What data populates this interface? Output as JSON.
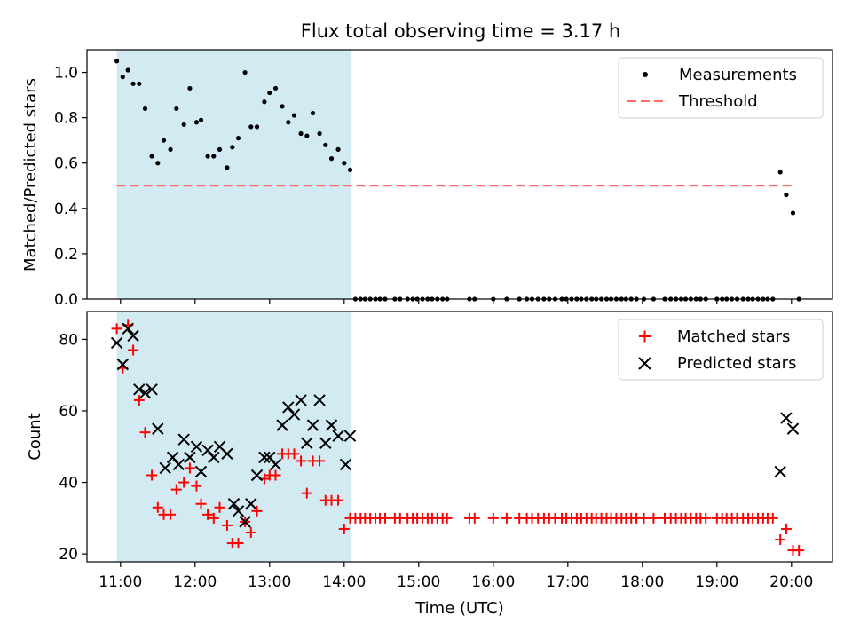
{
  "chart_data": [
    {
      "type": "scatter",
      "title": "Flux total observing time = 3.17 h",
      "xlabel": "",
      "ylabel": "Matched/Predicted stars",
      "x_unit": "hours UTC",
      "xlim": [
        10.55,
        20.55
      ],
      "ylim": [
        0,
        1.1
      ],
      "yticks": [
        0.0,
        0.2,
        0.4,
        0.6,
        0.8,
        1.0
      ],
      "ytick_labels": [
        "0.0",
        "0.2",
        "0.4",
        "0.6",
        "0.8",
        "1.0"
      ],
      "shaded_region": {
        "x_start": 10.95,
        "x_end": 14.1,
        "color": "#add8e6"
      },
      "threshold": {
        "y": 0.5,
        "x_start": 10.95,
        "x_end": 20.05,
        "color": "#ff6b6b",
        "style": "dashed"
      },
      "legend_position": "top-right",
      "series": [
        {
          "name": "Measurements",
          "marker": "dot",
          "color": "#000000",
          "x": [
            10.95,
            11.03,
            11.1,
            11.17,
            11.25,
            11.33,
            11.42,
            11.5,
            11.58,
            11.67,
            11.75,
            11.85,
            11.93,
            12.02,
            12.08,
            12.17,
            12.25,
            12.33,
            12.43,
            12.5,
            12.58,
            12.67,
            12.75,
            12.83,
            12.93,
            13.0,
            13.08,
            13.17,
            13.25,
            13.33,
            13.42,
            13.5,
            13.58,
            13.67,
            13.75,
            13.83,
            13.92,
            14.0,
            14.08,
            14.15,
            14.22,
            14.28,
            14.35,
            14.42,
            14.48,
            14.55,
            14.68,
            14.75,
            14.85,
            14.92,
            14.98,
            15.05,
            15.12,
            15.18,
            15.25,
            15.32,
            15.38,
            15.68,
            15.75,
            16.0,
            16.18,
            16.35,
            16.45,
            16.52,
            16.6,
            16.68,
            16.75,
            16.83,
            16.92,
            16.98,
            17.05,
            17.12,
            17.18,
            17.25,
            17.32,
            17.38,
            17.45,
            17.52,
            17.58,
            17.65,
            17.72,
            17.78,
            17.85,
            17.92,
            18.02,
            18.15,
            18.3,
            18.38,
            18.45,
            18.52,
            18.58,
            18.65,
            18.72,
            18.78,
            18.85,
            19.0,
            19.07,
            19.13,
            19.2,
            19.27,
            19.35,
            19.42,
            19.48,
            19.55,
            19.62,
            19.68,
            19.75,
            19.85,
            19.93,
            20.02,
            20.1
          ],
          "y": [
            1.05,
            0.98,
            1.01,
            0.95,
            0.95,
            0.84,
            0.63,
            0.6,
            0.7,
            0.66,
            0.84,
            0.77,
            0.93,
            0.78,
            0.79,
            0.63,
            0.63,
            0.66,
            0.58,
            0.67,
            0.71,
            1.0,
            0.76,
            0.76,
            0.87,
            0.91,
            0.93,
            0.85,
            0.78,
            0.81,
            0.73,
            0.72,
            0.82,
            0.73,
            0.68,
            0.62,
            0.66,
            0.6,
            0.57,
            0.0,
            0.0,
            0.0,
            0.0,
            0.0,
            0.0,
            0.0,
            0.0,
            0.0,
            0.0,
            0.0,
            0.0,
            0.0,
            0.0,
            0.0,
            0.0,
            0.0,
            0.0,
            0.0,
            0.0,
            0.0,
            0.0,
            0.0,
            0.0,
            0.0,
            0.0,
            0.0,
            0.0,
            0.0,
            0.0,
            0.0,
            0.0,
            0.0,
            0.0,
            0.0,
            0.0,
            0.0,
            0.0,
            0.0,
            0.0,
            0.0,
            0.0,
            0.0,
            0.0,
            0.0,
            0.0,
            0.0,
            0.0,
            0.0,
            0.0,
            0.0,
            0.0,
            0.0,
            0.0,
            0.0,
            0.0,
            0.0,
            0.0,
            0.0,
            0.0,
            0.0,
            0.0,
            0.0,
            0.0,
            0.0,
            0.0,
            0.0,
            0.0,
            0.56,
            0.46,
            0.38,
            0.0
          ]
        },
        {
          "name": "Threshold",
          "marker": "dashed-line",
          "color": "#ff6b6b"
        }
      ]
    },
    {
      "type": "scatter",
      "title": "",
      "xlabel": "Time (UTC)",
      "ylabel": "Count",
      "x_unit": "hours UTC",
      "xlim": [
        10.55,
        20.55
      ],
      "ylim": [
        17.8,
        87.8
      ],
      "xticks": [
        11,
        12,
        13,
        14,
        15,
        16,
        17,
        18,
        19,
        20
      ],
      "xtick_labels": [
        "11:00",
        "12:00",
        "13:00",
        "14:00",
        "15:00",
        "16:00",
        "17:00",
        "18:00",
        "19:00",
        "20:00"
      ],
      "yticks": [
        20,
        40,
        60,
        80
      ],
      "ytick_labels": [
        "20",
        "40",
        "60",
        "80"
      ],
      "shaded_region": {
        "x_start": 10.95,
        "x_end": 14.1,
        "color": "#add8e6"
      },
      "legend_position": "top-right",
      "series": [
        {
          "name": "Matched stars",
          "marker": "plus",
          "color": "#ff0000",
          "x": [
            10.95,
            11.03,
            11.1,
            11.17,
            11.25,
            11.33,
            11.42,
            11.5,
            11.58,
            11.67,
            11.75,
            11.85,
            11.93,
            12.02,
            12.08,
            12.17,
            12.25,
            12.33,
            12.43,
            12.5,
            12.58,
            12.67,
            12.75,
            12.83,
            12.93,
            13.0,
            13.08,
            13.17,
            13.25,
            13.33,
            13.42,
            13.5,
            13.58,
            13.67,
            13.75,
            13.83,
            13.92,
            14.0,
            14.08,
            14.15,
            14.22,
            14.28,
            14.35,
            14.42,
            14.48,
            14.55,
            14.68,
            14.75,
            14.85,
            14.92,
            14.98,
            15.05,
            15.12,
            15.18,
            15.25,
            15.32,
            15.38,
            15.68,
            15.75,
            16.0,
            16.18,
            16.35,
            16.45,
            16.52,
            16.6,
            16.68,
            16.75,
            16.83,
            16.92,
            16.98,
            17.05,
            17.12,
            17.18,
            17.25,
            17.32,
            17.38,
            17.45,
            17.52,
            17.58,
            17.65,
            17.72,
            17.78,
            17.85,
            17.92,
            18.02,
            18.15,
            18.3,
            18.38,
            18.45,
            18.52,
            18.58,
            18.65,
            18.72,
            18.78,
            18.85,
            19.0,
            19.07,
            19.13,
            19.2,
            19.27,
            19.35,
            19.42,
            19.48,
            19.55,
            19.62,
            19.68,
            19.75,
            19.85,
            19.93,
            20.02,
            20.1
          ],
          "y": [
            83,
            72,
            84,
            77,
            63,
            54,
            42,
            33,
            31,
            31,
            38,
            40,
            44,
            39,
            34,
            31,
            30,
            33,
            28,
            23,
            23,
            29,
            26,
            32,
            41,
            42,
            42,
            48,
            48,
            48,
            46,
            37,
            46,
            46,
            35,
            35,
            35,
            27,
            30,
            30,
            30,
            30,
            30,
            30,
            30,
            30,
            30,
            30,
            30,
            30,
            30,
            30,
            30,
            30,
            30,
            30,
            30,
            30,
            30,
            30,
            30,
            30,
            30,
            30,
            30,
            30,
            30,
            30,
            30,
            30,
            30,
            30,
            30,
            30,
            30,
            30,
            30,
            30,
            30,
            30,
            30,
            30,
            30,
            30,
            30,
            30,
            30,
            30,
            30,
            30,
            30,
            30,
            30,
            30,
            30,
            30,
            30,
            30,
            30,
            30,
            30,
            30,
            30,
            30,
            30,
            30,
            30,
            24,
            27,
            21,
            21
          ]
        },
        {
          "name": "Predicted stars",
          "marker": "x",
          "color": "#000000",
          "x": [
            10.95,
            11.03,
            11.1,
            11.17,
            11.25,
            11.33,
            11.42,
            11.5,
            11.6,
            11.7,
            11.78,
            11.85,
            11.93,
            12.02,
            12.08,
            12.17,
            12.25,
            12.33,
            12.43,
            12.52,
            12.58,
            12.67,
            12.75,
            12.83,
            12.93,
            13.0,
            13.08,
            13.17,
            13.25,
            13.33,
            13.42,
            13.5,
            13.58,
            13.67,
            13.75,
            13.83,
            13.92,
            14.02,
            14.08,
            19.85,
            19.93,
            20.02
          ],
          "y": [
            79,
            73,
            83,
            81,
            66,
            65,
            66,
            55,
            44,
            47,
            45,
            52,
            47,
            50,
            43,
            49,
            47,
            50,
            48,
            34,
            32,
            29,
            34,
            42,
            47,
            47,
            45,
            56,
            61,
            59,
            63,
            51,
            56,
            63,
            51,
            56,
            53,
            45,
            53,
            43,
            58,
            55
          ]
        }
      ]
    }
  ]
}
